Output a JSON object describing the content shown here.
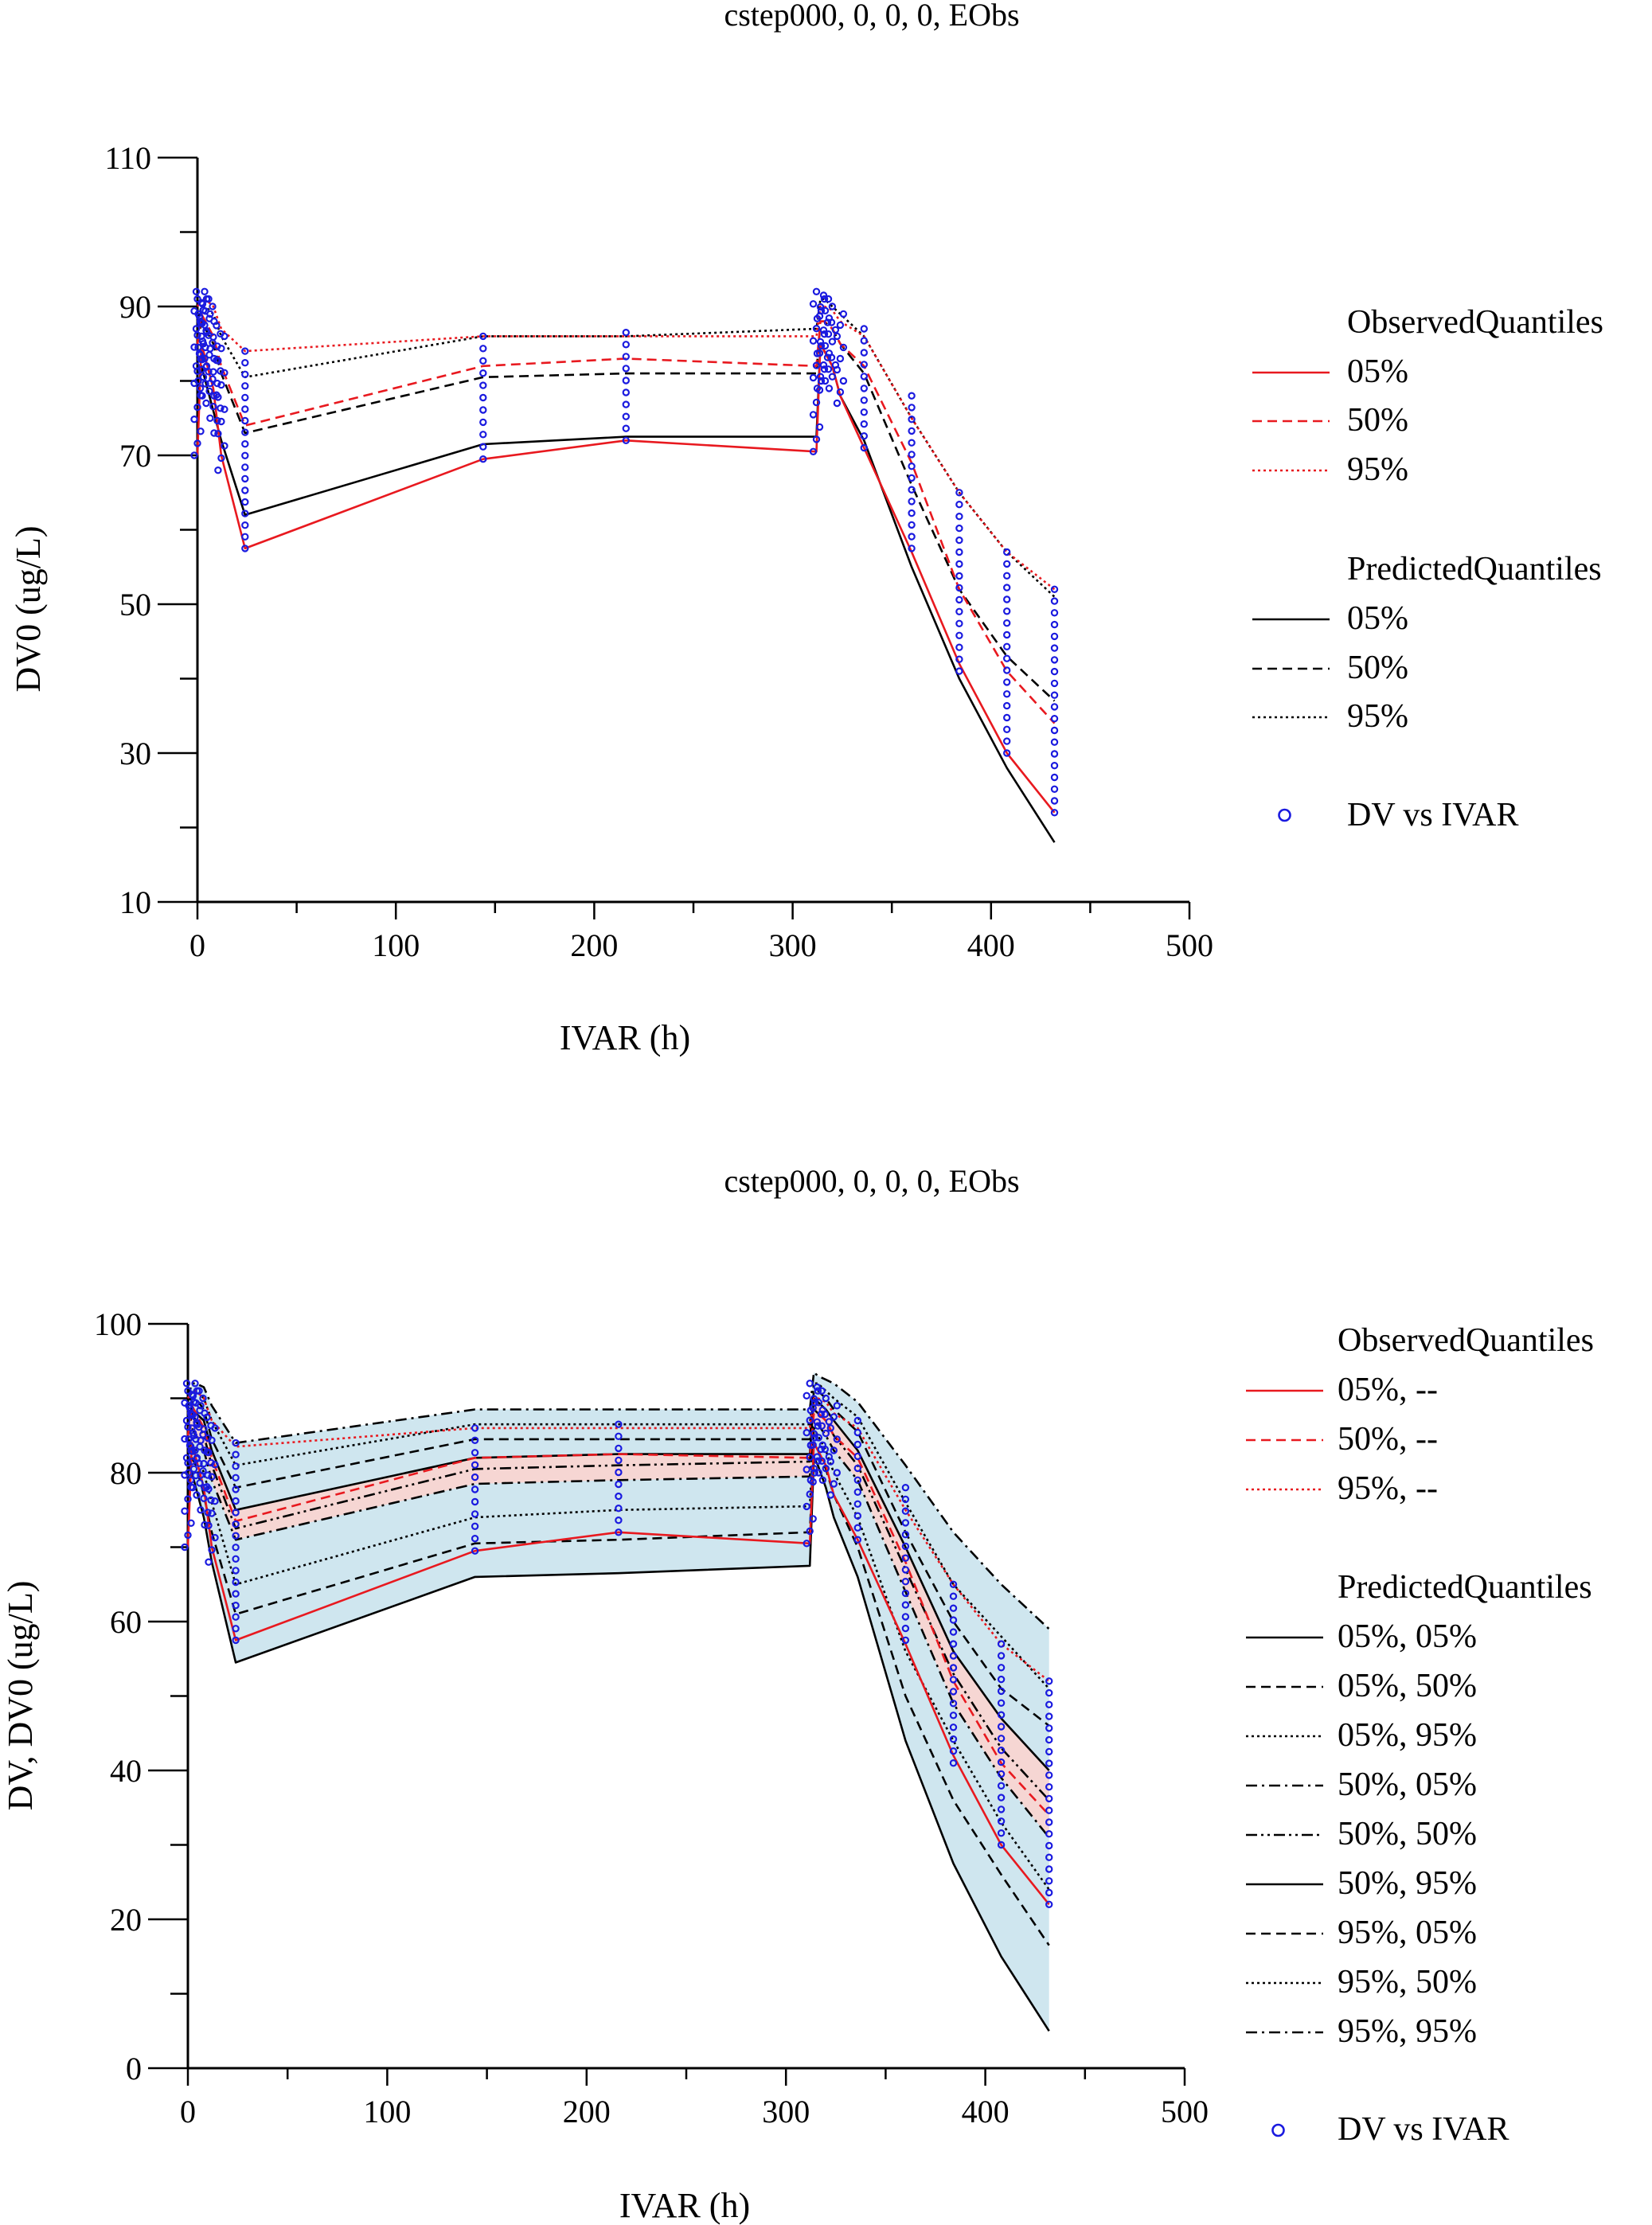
{
  "colors": {
    "observed": "#e8191f",
    "predicted": "#000000",
    "dv_points": "#1a1adf",
    "band_blue": "#cfe6ef",
    "band_pink": "#f6d6d3"
  },
  "chart_data": [
    {
      "type": "line",
      "title": "cstep000, 0, 0, 0, EObs",
      "xlabel": "IVAR (h)",
      "ylabel": "DV0 (ug/L)",
      "xlim": [
        0,
        500
      ],
      "ylim": [
        10,
        110
      ],
      "x_ticks": [
        "0",
        "100",
        "200",
        "300",
        "400",
        "500"
      ],
      "y_ticks": [
        "10",
        "30",
        "50",
        "70",
        "90",
        "110"
      ],
      "legend": {
        "observed_title": "ObservedQuantiles",
        "observed_entries": [
          "05%",
          "50%",
          "95%"
        ],
        "predicted_title": "PredictedQuantiles",
        "predicted_entries": [
          "05%",
          "50%",
          "95%"
        ],
        "points_label": "DV vs IVAR"
      },
      "x": [
        0,
        2,
        4,
        8,
        12,
        24,
        144,
        216,
        312,
        314,
        316,
        320,
        324,
        336,
        360,
        384,
        408,
        432
      ],
      "observed": [
        {
          "name": "05%",
          "dash": "solid",
          "values": [
            70,
            85,
            83,
            79,
            70,
            57.5,
            69.5,
            72,
            70.5,
            85,
            84,
            82,
            78,
            71,
            57,
            42,
            30,
            22
          ]
        },
        {
          "name": "50%",
          "dash": "dashed",
          "values": [
            85,
            89,
            88,
            86,
            82,
            74,
            82,
            83,
            82,
            88,
            88,
            87,
            85,
            82,
            69,
            52,
            41,
            34
          ]
        },
        {
          "name": "95%",
          "dash": "dotted",
          "values": [
            90,
            91,
            91,
            90,
            87,
            84,
            86,
            86,
            86,
            90,
            90,
            89.5,
            88,
            86,
            75,
            65,
            57,
            52
          ]
        }
      ],
      "predicted": [
        {
          "name": "05%",
          "dash": "solid",
          "values": [
            78,
            82,
            80,
            76,
            72,
            62,
            71.5,
            72.5,
            72.5,
            85,
            84,
            82,
            78,
            72,
            55,
            40,
            28,
            18
          ]
        },
        {
          "name": "50%",
          "dash": "dashed",
          "values": [
            85,
            88,
            87,
            85,
            81,
            73,
            80.5,
            81,
            81,
            88,
            88,
            87,
            85,
            81,
            66,
            52,
            43,
            37
          ]
        },
        {
          "name": "95%",
          "dash": "dotted",
          "values": [
            88,
            90,
            90,
            89,
            86,
            80.5,
            86,
            86,
            87,
            91,
            91,
            90,
            89,
            86,
            75,
            65,
            57,
            51
          ]
        }
      ],
      "dv_points": {
        "x": [
          0,
          1,
          2,
          3,
          4,
          6,
          8,
          10,
          12,
          24,
          144,
          216,
          312,
          314,
          316,
          318,
          320,
          324,
          336,
          360,
          384,
          408,
          432
        ],
        "y_min": [
          70,
          82,
          80,
          79,
          78,
          77,
          75,
          73,
          68,
          57.5,
          69.5,
          72,
          70.5,
          79,
          80,
          80,
          79,
          77,
          71,
          57.5,
          41,
          30,
          22
        ],
        "y_max": [
          91,
          92,
          92,
          91,
          91,
          90,
          89,
          88,
          86,
          84,
          86,
          86.5,
          92,
          91.5,
          91,
          91,
          90,
          89,
          87,
          78,
          65,
          57,
          52
        ]
      }
    },
    {
      "type": "line",
      "title": "cstep000, 0, 0, 0, EObs",
      "xlabel": "IVAR (h)",
      "ylabel": "DV, DV0 (ug/L)",
      "xlim": [
        0,
        500
      ],
      "ylim": [
        0,
        100
      ],
      "x_ticks": [
        "0",
        "100",
        "200",
        "300",
        "400",
        "500"
      ],
      "y_ticks": [
        "0",
        "20",
        "40",
        "60",
        "80",
        "100"
      ],
      "legend": {
        "observed_title": "ObservedQuantiles",
        "observed_entries": [
          "05%, --",
          "50%, --",
          "95%, --"
        ],
        "predicted_title": "PredictedQuantiles",
        "predicted_entries": [
          "05%, 05%",
          "05%, 50%",
          "05%, 95%",
          "50%, 05%",
          "50%, 50%",
          "50%, 95%",
          "95%, 05%",
          "95%, 50%",
          "95%, 95%"
        ],
        "points_label": "DV vs IVAR"
      },
      "x": [
        0,
        2,
        4,
        8,
        12,
        24,
        144,
        216,
        312,
        314,
        316,
        320,
        324,
        336,
        360,
        384,
        408,
        432
      ],
      "observed": [
        {
          "name": "05%, --",
          "dash": "solid",
          "values": [
            70,
            84,
            82,
            78,
            70,
            57.5,
            69.5,
            72,
            70.5,
            84,
            83,
            81,
            77,
            71,
            57,
            42,
            30,
            22
          ]
        },
        {
          "name": "50%, --",
          "dash": "dashed",
          "values": [
            85,
            89,
            88,
            86,
            82,
            73.5,
            82,
            82.5,
            82,
            88,
            88,
            87,
            85,
            82,
            68,
            52,
            41,
            34
          ]
        },
        {
          "name": "95%, --",
          "dash": "dotted",
          "values": [
            90,
            91,
            91,
            90,
            87,
            83.5,
            86,
            86,
            86,
            90,
            90,
            89.5,
            88,
            86,
            75,
            65,
            57,
            52
          ]
        }
      ],
      "predicted": [
        {
          "name": "05%, 05%",
          "dash": "solid",
          "values": [
            78,
            80,
            78,
            74,
            68,
            54.5,
            66,
            66.5,
            67.5,
            82,
            81,
            78,
            74,
            66,
            44,
            27.5,
            15,
            5
          ]
        },
        {
          "name": "05%, 50%",
          "dash": "dashed",
          "values": [
            80,
            82,
            81,
            77,
            72,
            61,
            70.5,
            71,
            72,
            84,
            83,
            80.5,
            77,
            70,
            50,
            36,
            26,
            16.5
          ]
        },
        {
          "name": "05%, 95%",
          "dash": "dotted",
          "values": [
            82,
            84,
            83,
            80,
            76,
            65,
            74,
            75,
            75.5,
            86,
            85,
            83,
            80,
            74,
            56,
            44,
            33,
            24
          ]
        },
        {
          "name": "50%, 05%",
          "dash": "dashdot",
          "values": [
            83,
            86,
            85,
            83,
            79,
            71,
            78.5,
            79,
            79.5,
            87,
            86.5,
            85,
            83,
            79,
            64,
            49,
            39,
            31
          ]
        },
        {
          "name": "50%, 50%",
          "dash": "dashdotdot",
          "values": [
            85,
            88,
            87,
            85,
            81,
            72.5,
            80.5,
            81,
            81.5,
            88.5,
            88,
            87,
            85,
            81,
            67,
            53,
            43,
            36
          ]
        },
        {
          "name": "50%, 95%",
          "dash": "solid",
          "values": [
            86,
            89,
            88,
            87,
            83,
            75,
            82,
            82.5,
            82.5,
            90,
            89.5,
            88.5,
            87,
            83,
            70,
            56,
            47,
            40
          ]
        },
        {
          "name": "95%, 05%",
          "dash": "dashed",
          "values": [
            87,
            90,
            90,
            88.5,
            84.5,
            78,
            84.5,
            84.5,
            84.5,
            91,
            91,
            90,
            88.5,
            85.5,
            72,
            60,
            51,
            46
          ]
        },
        {
          "name": "95%, 50%",
          "dash": "dotted",
          "values": [
            89,
            91,
            91,
            90,
            87,
            81,
            86.5,
            86.5,
            86.5,
            92,
            92,
            91,
            90,
            87.5,
            76,
            65,
            58,
            51
          ]
        },
        {
          "name": "95%, 95%",
          "dash": "dashdot",
          "values": [
            90,
            92,
            92,
            91.5,
            89,
            84,
            88.5,
            88.5,
            88.5,
            93.5,
            93,
            92.5,
            92,
            89.5,
            81,
            72,
            65,
            59
          ]
        }
      ],
      "bands": [
        {
          "color": "blue",
          "lower": "05%, 05%",
          "upper": "95%, 95%"
        },
        {
          "color": "pink",
          "lower": "50%, 05%",
          "upper": "50%, 95%"
        }
      ],
      "dv_points": {
        "x": [
          0,
          1,
          2,
          3,
          4,
          6,
          8,
          10,
          12,
          24,
          144,
          216,
          312,
          314,
          316,
          318,
          320,
          324,
          336,
          360,
          384,
          408,
          432
        ],
        "y_min": [
          70,
          82,
          80,
          79,
          78,
          77,
          75,
          73,
          68,
          57.5,
          69.5,
          72,
          70.5,
          79,
          80,
          80,
          79,
          77,
          71,
          57.5,
          41,
          30,
          22
        ],
        "y_max": [
          91,
          92,
          92,
          91,
          91,
          90,
          89,
          88,
          86,
          84,
          86,
          86.5,
          92,
          91.5,
          91,
          91,
          90,
          89,
          87,
          78,
          65,
          57,
          52
        ]
      }
    }
  ]
}
